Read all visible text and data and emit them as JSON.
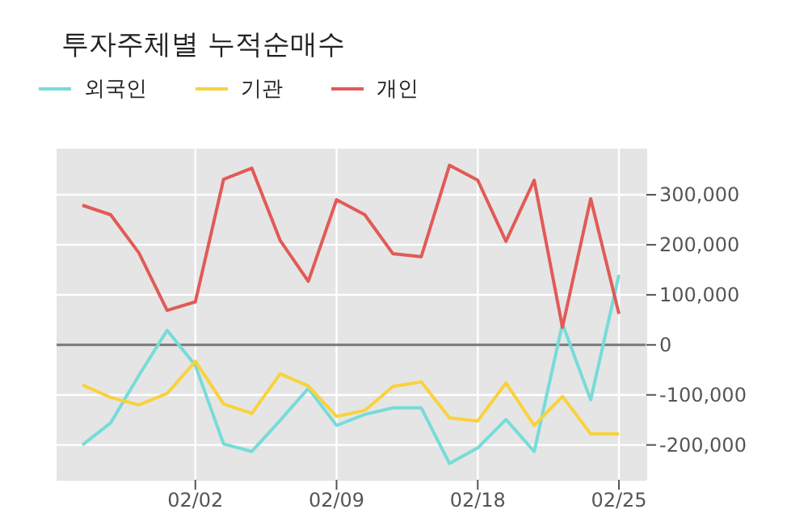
{
  "chart_data": {
    "type": "line",
    "title": "투자주체별 누적순매수",
    "categories": [
      null,
      null,
      null,
      null,
      "02/02",
      null,
      null,
      null,
      null,
      "02/09",
      null,
      null,
      null,
      null,
      "02/18",
      null,
      null,
      null,
      null,
      "02/25"
    ],
    "series": [
      {
        "name": "외국인",
        "color": "#76dcd8",
        "values": [
          -200000,
          -156000,
          -61000,
          29000,
          -41000,
          -198000,
          -213000,
          -151000,
          -87000,
          -161000,
          -139000,
          -126000,
          -126000,
          -237000,
          -206000,
          -149000,
          -213000,
          42000,
          -110000,
          140000
        ]
      },
      {
        "name": "기관",
        "color": "#f9d23c",
        "values": [
          -80000,
          -105000,
          -120000,
          -97000,
          -33000,
          -118000,
          -137000,
          -58000,
          -82000,
          -143000,
          -131000,
          -83000,
          -74000,
          -146000,
          -152000,
          -76000,
          -161000,
          -103000,
          -178000,
          -178000
        ]
      },
      {
        "name": "개인",
        "color": "#e25a57",
        "values": [
          279000,
          260000,
          184000,
          69000,
          86000,
          331000,
          353000,
          209000,
          127000,
          290000,
          260000,
          182000,
          176000,
          359000,
          329000,
          207000,
          329000,
          35000,
          292000,
          62000
        ]
      }
    ],
    "ylim": [
      -270000,
      392000
    ],
    "yticks": [
      {
        "value": -200000,
        "label": "-200,000"
      },
      {
        "value": -100000,
        "label": "-100,000"
      },
      0,
      {
        "value": 100000,
        "label": "100,000"
      },
      {
        "value": 200000,
        "label": "200,000"
      },
      {
        "value": 300000,
        "label": "300,000"
      }
    ],
    "ref_lines": [
      {
        "axis": "y",
        "value": 0,
        "color": "#777777"
      }
    ],
    "grid": true,
    "legend": "top left",
    "marker": "none",
    "line_style": "solid"
  }
}
